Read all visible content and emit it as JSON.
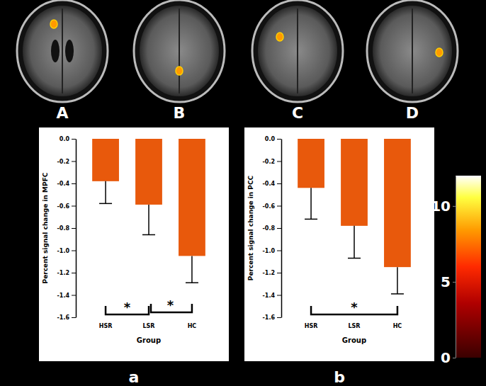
{
  "images": [
    "A",
    "B",
    "C",
    "D"
  ],
  "chart_data": [
    {
      "type": "bar",
      "title": "a",
      "x_label": "Group",
      "y_label": "Percent signal change in MPFC",
      "categories": [
        "HSR",
        "LSR",
        "HC"
      ],
      "values": [
        -0.38,
        -0.59,
        -1.05
      ],
      "errors": [
        0.2,
        0.27,
        0.24
      ],
      "color": "#e8590c",
      "ylim": [
        -1.6,
        0.0
      ],
      "yticks": [
        {
          "value": 0.0,
          "label": "0.0"
        },
        -0.2,
        -0.4,
        -0.6,
        -0.8,
        {
          "value": -1.0,
          "label": "-1.0"
        },
        -1.2,
        -1.4,
        -1.6
      ],
      "annotations": [
        {
          "text": "*",
          "between": [
            "HSR",
            "LSR"
          ]
        },
        {
          "text": "*",
          "between": [
            "LSR",
            "HC"
          ]
        }
      ]
    },
    {
      "type": "bar",
      "title": "b",
      "x_label": "Group",
      "y_label": "Percent signal change in PCC",
      "categories": [
        "HSR",
        "LSR",
        "HC"
      ],
      "values": [
        -0.44,
        -0.78,
        -1.15
      ],
      "errors": [
        0.28,
        0.29,
        0.24
      ],
      "color": "#e8590c",
      "ylim": [
        -1.6,
        0.0
      ],
      "yticks": [
        {
          "value": 0.0,
          "label": "0.0"
        },
        -0.2,
        -0.4,
        -0.6,
        -0.8,
        {
          "value": -1.0,
          "label": "-1.0"
        },
        -1.2,
        -1.4,
        -1.6
      ],
      "annotations": [
        {
          "text": "*",
          "between": [
            "HSR",
            "HC"
          ]
        }
      ]
    }
  ],
  "color_bar": {
    "range": [
      0,
      12
    ],
    "ticks": [
      0,
      5,
      10
    ]
  }
}
